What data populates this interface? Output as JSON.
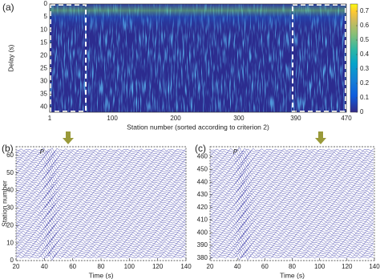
{
  "chart_data": [
    {
      "type": "heatmap",
      "panel_label": "(a)",
      "xlabel": "Station number (sorted according to criterion 2)",
      "ylabel": "Delay (s)",
      "xlim": [
        1,
        470
      ],
      "xticks": [
        1,
        100,
        200,
        300,
        390,
        470
      ],
      "ylim": [
        0,
        42
      ],
      "yticks": [
        0,
        5,
        10,
        15,
        20,
        25,
        30,
        35,
        40
      ],
      "colorbar": {
        "lim": [
          0,
          0.75
        ],
        "ticks": [
          0,
          0.1,
          0.2,
          0.3,
          0.4,
          0.5,
          0.6,
          0.7
        ]
      }
    },
    {
      "type": "wiggle",
      "panel_label": "(b)",
      "annotation": "P",
      "xlabel": "Time (s)",
      "ylabel": "Station number",
      "xlim": [
        20,
        140
      ],
      "xticks": [
        20,
        40,
        60,
        80,
        100,
        120,
        140
      ],
      "ylim": [
        0,
        65
      ],
      "yticks": [
        0,
        10,
        20,
        30,
        40,
        50,
        60
      ]
    },
    {
      "type": "wiggle",
      "panel_label": "(c)",
      "annotation": "P",
      "xlabel": "Time (s)",
      "xlim": [
        20,
        140
      ],
      "xticks": [
        20,
        40,
        60,
        80,
        100,
        120,
        140
      ],
      "ylim": [
        378,
        468
      ],
      "yticks": [
        380,
        390,
        400,
        410,
        420,
        430,
        440,
        450,
        460
      ]
    }
  ]
}
